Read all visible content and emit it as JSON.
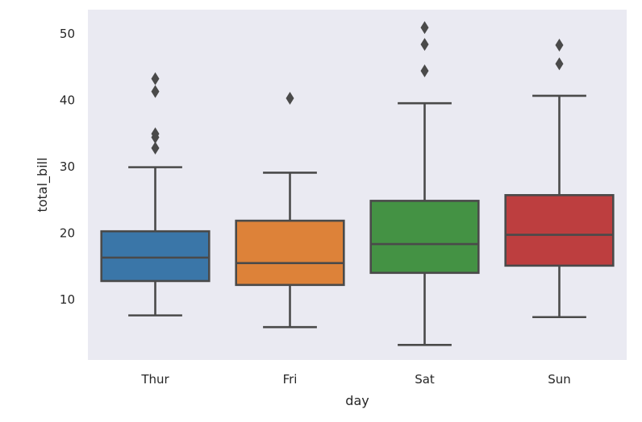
{
  "chart_data": {
    "type": "box",
    "xlabel": "day",
    "ylabel": "total_bill",
    "ylim": [
      0.8,
      53.5
    ],
    "yticks": [
      10,
      20,
      30,
      40,
      50
    ],
    "grid": false,
    "background": "#eaeaf2",
    "line_color": "#4a4a4a",
    "categories": [
      "Thur",
      "Fri",
      "Sat",
      "Sun"
    ],
    "boxes": [
      {
        "category": "Thur",
        "color": "#3a76a8",
        "whislo": 7.51,
        "q1": 12.68,
        "med": 16.2,
        "q3": 20.16,
        "whishi": 29.8,
        "fliers": [
          32.68,
          34.3,
          34.83,
          41.19,
          43.11
        ]
      },
      {
        "category": "Fri",
        "color": "#dd8239",
        "whislo": 5.75,
        "q1": 12.09,
        "med": 15.38,
        "q3": 21.75,
        "whishi": 28.97,
        "fliers": [
          40.17
        ]
      },
      {
        "category": "Sat",
        "color": "#449244",
        "whislo": 3.07,
        "q1": 13.91,
        "med": 18.24,
        "q3": 24.74,
        "whishi": 39.42,
        "fliers": [
          44.3,
          48.27,
          50.81
        ]
      },
      {
        "category": "Sun",
        "color": "#bd3e3f",
        "whislo": 7.25,
        "q1": 14.99,
        "med": 19.63,
        "q3": 25.6,
        "whishi": 40.55,
        "fliers": [
          45.35,
          48.17
        ]
      }
    ]
  }
}
